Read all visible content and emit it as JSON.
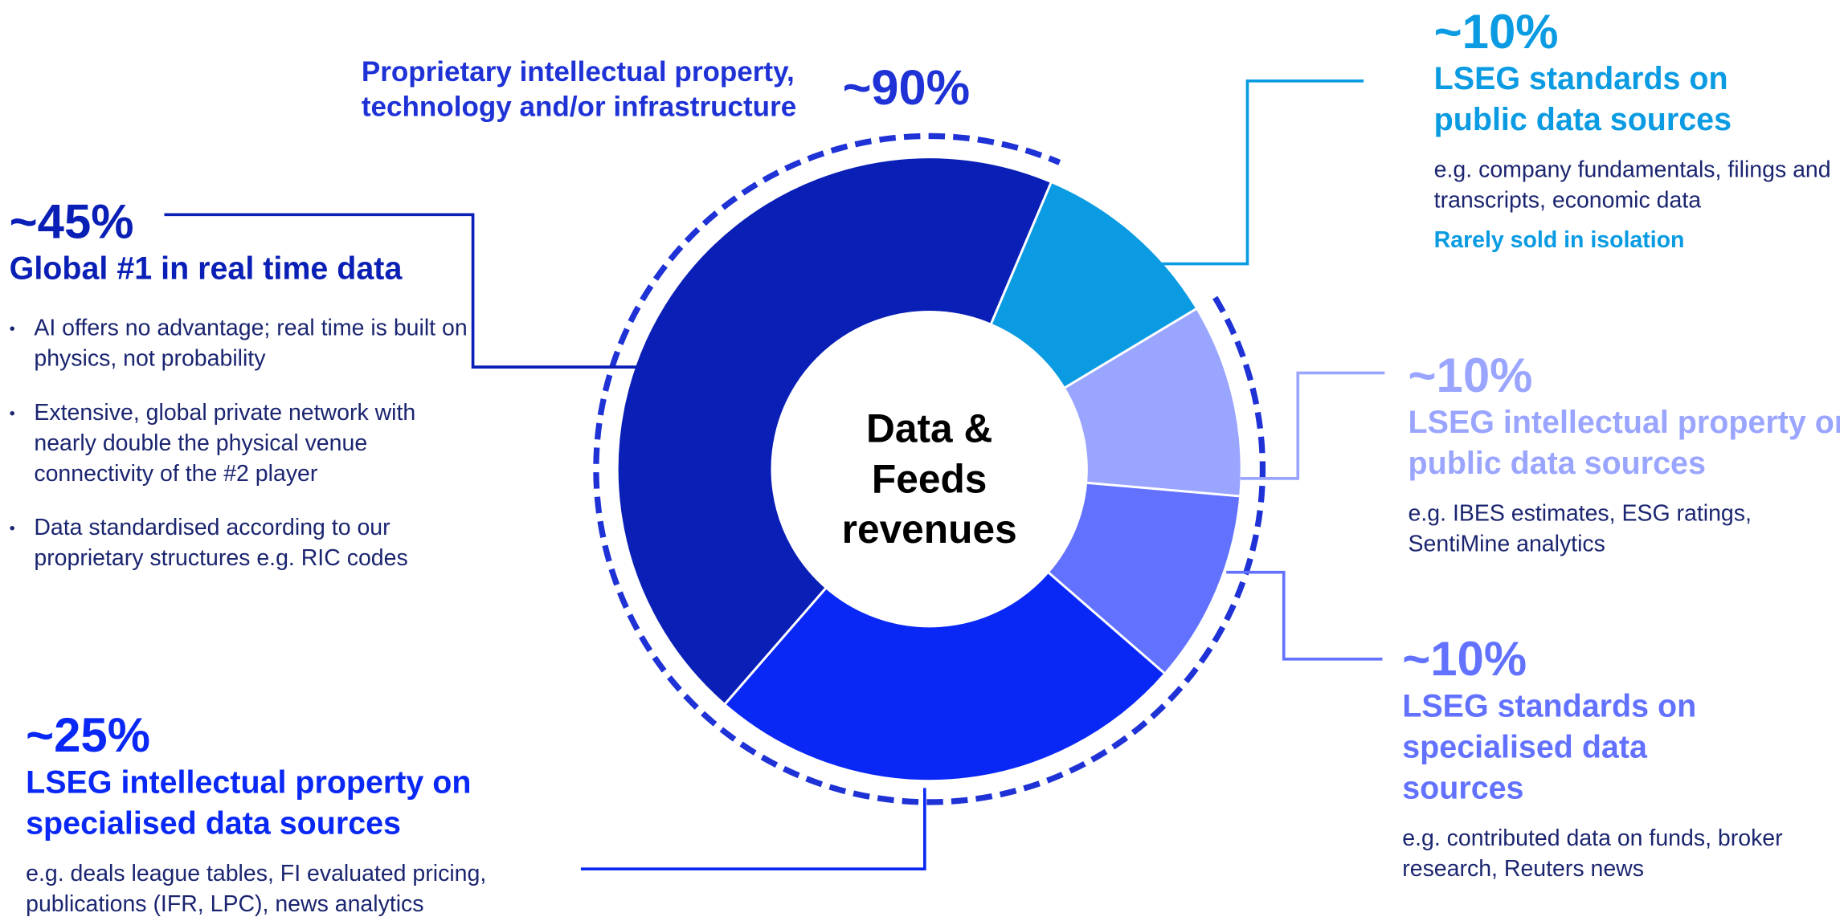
{
  "chart_data": {
    "type": "pie",
    "center_label": "Data & Feeds revenues",
    "categories": [
      "Global #1 in real time data",
      "LSEG standards on public data sources",
      "LSEG intellectual property on public data sources",
      "LSEG standards on specialised data sources",
      "LSEG intellectual property on specialised data sources"
    ],
    "values": [
      45,
      10,
      10,
      10,
      25
    ],
    "value_labels": [
      "~45%",
      "~10%",
      "~10%",
      "~10%",
      "~25%"
    ],
    "colors": [
      "#0a1fb5",
      "#0a9be2",
      "#9aa5ff",
      "#6272ff",
      "#0a28f5"
    ],
    "notes": [
      [
        "AI offers no advantage; real time is built on physics, not probability",
        "Extensive, global private network with nearly double the physical venue connectivity of the #2 player",
        "Data standardised according to our proprietary structures e.g. RIC codes"
      ],
      [
        "e.g. company fundamentals, filings and transcripts, economic data"
      ],
      [
        "e.g. IBES estimates, ESG ratings, SentiMine analytics"
      ],
      [
        "e.g. contributed data on funds, broker research, Reuters news"
      ],
      [
        "e.g. deals league tables, FI evaluated pricing, publications (IFR, LPC), news analytics"
      ]
    ],
    "callout": "Rarely sold in isolation",
    "annotation": {
      "value": 90,
      "label": "~90%",
      "text": "Proprietary intellectual property, technology and/or infrastructure"
    }
  }
}
